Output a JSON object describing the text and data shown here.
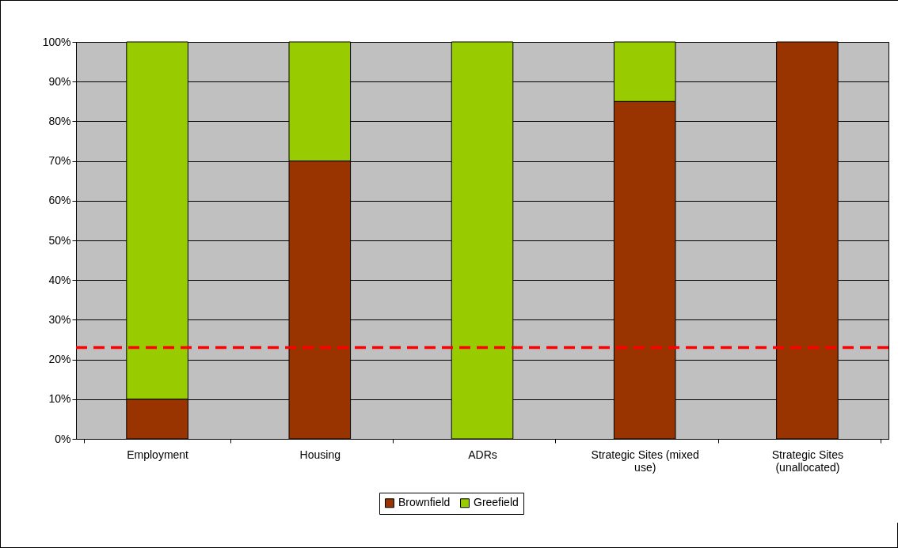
{
  "chart_data": {
    "type": "bar",
    "stacked": true,
    "categories": [
      "Employment",
      "Housing",
      "ADRs",
      "Strategic Sites (mixed use)",
      "Strategic Sites (unallocated)"
    ],
    "series": [
      {
        "name": "Brownfield",
        "color": "#993300",
        "values": [
          10,
          70,
          0,
          85,
          100
        ]
      },
      {
        "name": "Greefield",
        "color": "#99cc00",
        "values": [
          90,
          30,
          100,
          15,
          0
        ]
      }
    ],
    "ylim": [
      0,
      100
    ],
    "yticks": [
      {
        "value": 0,
        "label": "0%"
      },
      {
        "value": 10,
        "label": "10%"
      },
      {
        "value": 20,
        "label": "20%"
      },
      {
        "value": 30,
        "label": "30%"
      },
      {
        "value": 40,
        "label": "40%"
      },
      {
        "value": 50,
        "label": "50%"
      },
      {
        "value": 60,
        "label": "60%"
      },
      {
        "value": 70,
        "label": "70%"
      },
      {
        "value": 80,
        "label": "80%"
      },
      {
        "value": 90,
        "label": "90%"
      },
      {
        "value": 100,
        "label": "100%"
      }
    ],
    "ref_lines": [
      {
        "axis": "y",
        "value": 23,
        "color": "#ff0000",
        "line_style": "dashed"
      }
    ],
    "grid": "y",
    "legend": "bottom"
  }
}
